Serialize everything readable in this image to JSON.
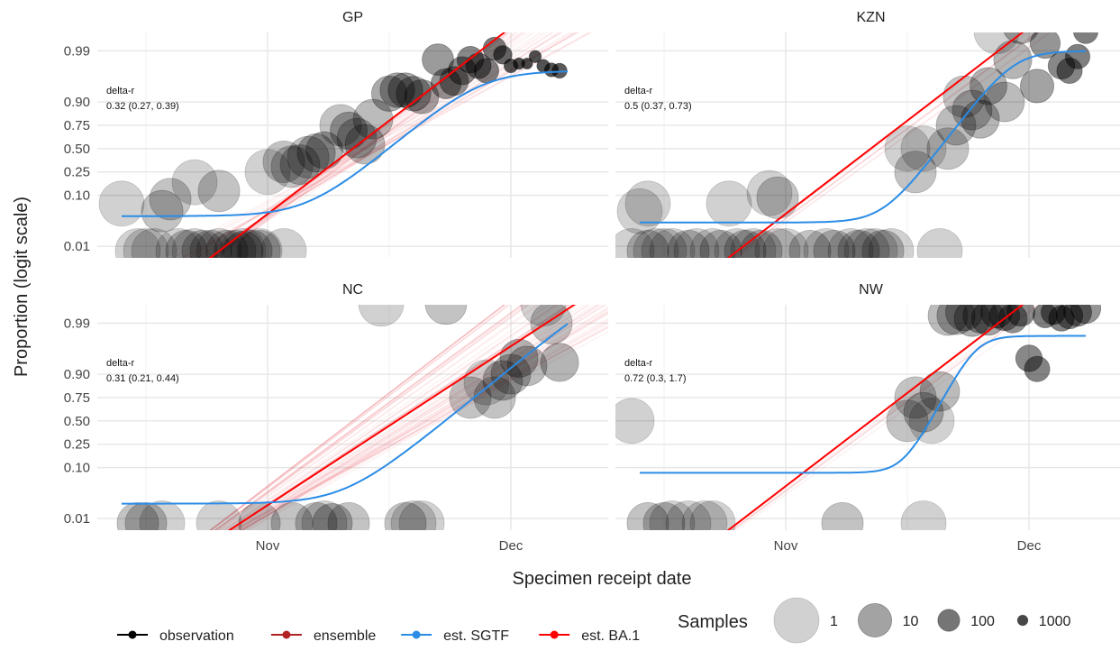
{
  "figure": {
    "ylabel": "Proportion (logit scale)",
    "xlabel": "Specimen receipt date",
    "legend_position": "bottom",
    "legend_items": [
      {
        "label": "observation",
        "color": "#000000"
      },
      {
        "label": "ensemble",
        "color": "#b22222"
      },
      {
        "label": "est. SGTF",
        "color": "#2b8ce6"
      },
      {
        "label": "est. BA.1",
        "color": "#ff0000"
      }
    ],
    "size_legend": {
      "title": "Samples",
      "labels": [
        "1",
        "10",
        "100",
        "1000"
      ]
    }
  },
  "chart_data": [
    {
      "type": "scatter",
      "panel": "GP",
      "annotation": [
        "delta-r",
        "0.32 (0.27, 0.39)"
      ],
      "x_ticks": [
        {
          "value": 0,
          "label": "Nov"
        },
        {
          "value": 30,
          "label": "Dec"
        }
      ],
      "y_ticks": [
        {
          "value": 0.01,
          "label": "0.01"
        },
        {
          "value": 0.1,
          "label": "0.10"
        },
        {
          "value": 0.25,
          "label": "0.25"
        },
        {
          "value": 0.5,
          "label": "0.50"
        },
        {
          "value": 0.75,
          "label": "0.75"
        },
        {
          "value": 0.9,
          "label": "0.90"
        },
        {
          "value": 0.99,
          "label": "0.99"
        }
      ],
      "sgtf": {
        "lower": 0.04,
        "upper": 0.975,
        "midpoint": 15,
        "rate": 0.32
      },
      "ba1": {
        "midpoint": 12.5,
        "rate": 0.32
      },
      "points": [
        [
          -18,
          0.07,
          1
        ],
        [
          -16,
          0.008,
          1
        ],
        [
          -15,
          0.008,
          1
        ],
        [
          -14,
          0.008,
          1
        ],
        [
          -13,
          0.05,
          2
        ],
        [
          -12,
          0.085,
          2
        ],
        [
          -11,
          0.008,
          1
        ],
        [
          -10,
          0.008,
          2
        ],
        [
          -9,
          0.17,
          1
        ],
        [
          -9,
          0.008,
          1
        ],
        [
          -8,
          0.008,
          2
        ],
        [
          -7,
          0.008,
          2
        ],
        [
          -6,
          0.12,
          2
        ],
        [
          -6,
          0.008,
          1
        ],
        [
          -5,
          0.008,
          2
        ],
        [
          -4,
          0.008,
          2
        ],
        [
          -3,
          0.008,
          1
        ],
        [
          -3,
          0.008,
          3
        ],
        [
          -2,
          0.008,
          2
        ],
        [
          -1,
          0.008,
          1
        ],
        [
          -1,
          0.008,
          2
        ],
        [
          0,
          0.25,
          1
        ],
        [
          2,
          0.008,
          1
        ],
        [
          2,
          0.35,
          2
        ],
        [
          3,
          0.3,
          2
        ],
        [
          4,
          0.32,
          3
        ],
        [
          5,
          0.4,
          2
        ],
        [
          6,
          0.45,
          4
        ],
        [
          7,
          0.48,
          5
        ],
        [
          9,
          0.75,
          2
        ],
        [
          10,
          0.7,
          5
        ],
        [
          11,
          0.62,
          3
        ],
        [
          12,
          0.55,
          3
        ],
        [
          13,
          0.8,
          3
        ],
        [
          15,
          0.93,
          7
        ],
        [
          16,
          0.94,
          8
        ],
        [
          17,
          0.94,
          8
        ],
        [
          18,
          0.93,
          8
        ],
        [
          19,
          0.92,
          9
        ],
        [
          21,
          0.985,
          15
        ],
        [
          22,
          0.955,
          20
        ],
        [
          23,
          0.96,
          25
        ],
        [
          24,
          0.975,
          30
        ],
        [
          25,
          0.985,
          40
        ],
        [
          26,
          0.98,
          50
        ],
        [
          27,
          0.975,
          60
        ],
        [
          28,
          0.991,
          80
        ],
        [
          29,
          0.988,
          200
        ],
        [
          30,
          0.98,
          500
        ],
        [
          31,
          0.982,
          800
        ],
        [
          32,
          0.982,
          900
        ],
        [
          33,
          0.987,
          700
        ],
        [
          34,
          0.98,
          600
        ],
        [
          35,
          0.976,
          500
        ],
        [
          36,
          0.975,
          400
        ]
      ]
    },
    {
      "type": "scatter",
      "panel": "KZN",
      "annotation": [
        "delta-r",
        "0.5 (0.37, 0.73)"
      ],
      "x_ticks": [
        {
          "value": 0,
          "label": "Nov"
        },
        {
          "value": 30,
          "label": "Dec"
        }
      ],
      "y_ticks": [
        {
          "value": 0.01,
          "label": "0.01"
        },
        {
          "value": 0.1,
          "label": "0.10"
        },
        {
          "value": 0.25,
          "label": "0.25"
        },
        {
          "value": 0.5,
          "label": "0.50"
        },
        {
          "value": 0.75,
          "label": "0.75"
        },
        {
          "value": 0.9,
          "label": "0.90"
        },
        {
          "value": 0.99,
          "label": "0.99"
        }
      ],
      "sgtf": {
        "lower": 0.03,
        "upper": 0.99,
        "midpoint": 19,
        "rate": 0.5
      },
      "ba1": {
        "midpoint": 17,
        "rate": 0.5
      },
      "points": [
        [
          -19,
          0.008,
          1
        ],
        [
          -18,
          0.05,
          1
        ],
        [
          -17,
          0.07,
          1
        ],
        [
          -17,
          0.008,
          2
        ],
        [
          -16,
          0.008,
          1
        ],
        [
          -15,
          0.008,
          1
        ],
        [
          -14,
          0.008,
          1
        ],
        [
          -12,
          0.008,
          2
        ],
        [
          -11,
          0.008,
          1
        ],
        [
          -9,
          0.008,
          1
        ],
        [
          -8,
          0.008,
          2
        ],
        [
          -7,
          0.07,
          1
        ],
        [
          -6,
          0.008,
          1
        ],
        [
          -5,
          0.008,
          2
        ],
        [
          -4,
          0.008,
          1
        ],
        [
          -3,
          0.008,
          2
        ],
        [
          -2,
          0.11,
          1
        ],
        [
          -1,
          0.09,
          2
        ],
        [
          -1,
          0.008,
          1
        ],
        [
          0,
          0.008,
          1
        ],
        [
          3,
          0.008,
          2
        ],
        [
          5,
          0.008,
          1
        ],
        [
          6,
          0.008,
          2
        ],
        [
          8,
          0.008,
          1
        ],
        [
          9,
          0.008,
          2
        ],
        [
          10,
          0.008,
          1
        ],
        [
          11,
          0.008,
          1
        ],
        [
          12,
          0.008,
          2
        ],
        [
          13,
          0.008,
          1
        ],
        [
          15,
          0.5,
          1
        ],
        [
          16,
          0.25,
          2
        ],
        [
          17,
          0.5,
          1
        ],
        [
          19,
          0.008,
          1
        ],
        [
          20,
          0.5,
          2
        ],
        [
          21,
          0.75,
          3
        ],
        [
          22,
          0.92,
          2
        ],
        [
          23,
          0.86,
          3
        ],
        [
          24,
          0.8,
          4
        ],
        [
          25,
          0.95,
          5
        ],
        [
          26,
          0.996,
          1
        ],
        [
          27,
          0.9,
          3
        ],
        [
          28,
          0.985,
          4
        ],
        [
          29,
          0.997,
          5
        ],
        [
          31,
          0.95,
          10
        ],
        [
          32,
          0.993,
          20
        ],
        [
          34,
          0.98,
          40
        ],
        [
          35,
          0.975,
          50
        ],
        [
          36,
          0.987,
          60
        ],
        [
          37,
          0.996,
          60
        ]
      ]
    },
    {
      "type": "scatter",
      "panel": "NC",
      "annotation": [
        "delta-r",
        "0.31 (0.21, 0.44)"
      ],
      "x_ticks": [
        {
          "value": 0,
          "label": "Nov"
        },
        {
          "value": 30,
          "label": "Dec"
        }
      ],
      "y_ticks": [
        {
          "value": 0.01,
          "label": "0.01"
        },
        {
          "value": 0.1,
          "label": "0.10"
        },
        {
          "value": 0.25,
          "label": "0.25"
        },
        {
          "value": 0.5,
          "label": "0.50"
        },
        {
          "value": 0.75,
          "label": "0.75"
        },
        {
          "value": 0.9,
          "label": "0.90"
        },
        {
          "value": 0.99,
          "label": "0.99"
        }
      ],
      "sgtf": {
        "lower": 0.02,
        "upper": 0.999,
        "midpoint": 22,
        "rate": 0.31
      },
      "ba1": {
        "midpoint": 21,
        "rate": 0.31
      },
      "points": [
        [
          -16,
          0.008,
          2
        ],
        [
          -15,
          0.008,
          2
        ],
        [
          -13,
          0.008,
          1
        ],
        [
          -6,
          0.008,
          1
        ],
        [
          -1,
          0.008,
          2
        ],
        [
          3,
          0.008,
          2
        ],
        [
          6,
          0.008,
          2
        ],
        [
          7,
          0.008,
          1
        ],
        [
          8,
          0.008,
          3
        ],
        [
          10,
          0.008,
          2
        ],
        [
          14,
          0.996,
          1
        ],
        [
          17,
          0.008,
          2
        ],
        [
          18,
          0.008,
          1
        ],
        [
          19,
          0.008,
          1
        ],
        [
          22,
          0.996,
          2
        ],
        [
          25,
          0.75,
          2
        ],
        [
          27,
          0.86,
          1
        ],
        [
          28,
          0.75,
          2
        ],
        [
          29,
          0.87,
          3
        ],
        [
          30,
          0.9,
          3
        ],
        [
          31,
          0.95,
          4
        ],
        [
          32,
          0.93,
          3
        ],
        [
          34,
          0.996,
          1
        ],
        [
          35,
          0.99,
          2
        ],
        [
          36,
          0.94,
          4
        ]
      ]
    },
    {
      "type": "scatter",
      "panel": "NW",
      "annotation": [
        "delta-r",
        "0.72 (0.3, 1.7)"
      ],
      "x_ticks": [
        {
          "value": 0,
          "label": "Nov"
        },
        {
          "value": 30,
          "label": "Dec"
        }
      ],
      "y_ticks": [
        {
          "value": 0.01,
          "label": "0.01"
        },
        {
          "value": 0.1,
          "label": "0.10"
        },
        {
          "value": 0.25,
          "label": "0.25"
        },
        {
          "value": 0.5,
          "label": "0.50"
        },
        {
          "value": 0.75,
          "label": "0.75"
        },
        {
          "value": 0.9,
          "label": "0.90"
        },
        {
          "value": 0.99,
          "label": "0.99"
        }
      ],
      "sgtf": {
        "lower": 0.08,
        "upper": 0.982,
        "midpoint": 18,
        "rate": 0.72
      },
      "ba1": {
        "midpoint": 16.5,
        "rate": 0.72
      },
      "points": [
        [
          -19,
          0.5,
          1
        ],
        [
          -17,
          0.008,
          2
        ],
        [
          -15,
          0.008,
          2
        ],
        [
          -14,
          0.008,
          1
        ],
        [
          -12,
          0.008,
          1
        ],
        [
          -10,
          0.008,
          1
        ],
        [
          -9,
          0.008,
          1
        ],
        [
          7,
          0.008,
          2
        ],
        [
          15,
          0.5,
          2
        ],
        [
          16,
          0.75,
          2
        ],
        [
          17,
          0.6,
          3
        ],
        [
          17,
          0.008,
          1
        ],
        [
          18,
          0.5,
          1
        ],
        [
          19,
          0.8,
          3
        ],
        [
          20,
          0.993,
          3
        ],
        [
          21,
          0.993,
          4
        ],
        [
          22,
          0.994,
          5
        ],
        [
          23,
          0.992,
          6
        ],
        [
          24,
          0.993,
          8
        ],
        [
          25,
          0.992,
          10
        ],
        [
          26,
          0.994,
          15
        ],
        [
          27,
          0.993,
          20
        ],
        [
          28,
          0.992,
          25
        ],
        [
          29,
          0.994,
          30
        ],
        [
          30,
          0.95,
          40
        ],
        [
          31,
          0.92,
          50
        ],
        [
          32,
          0.993,
          60
        ],
        [
          33,
          0.994,
          60
        ],
        [
          34,
          0.992,
          50
        ],
        [
          35,
          0.993,
          40
        ],
        [
          36,
          0.994,
          30
        ],
        [
          37,
          0.995,
          20
        ]
      ]
    }
  ]
}
